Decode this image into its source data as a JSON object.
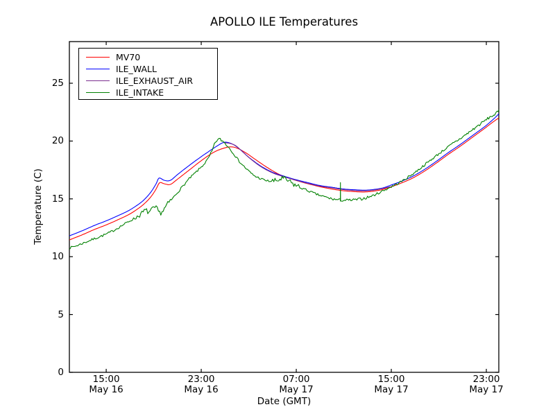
{
  "figure": {
    "background": "#ffffff",
    "axis_color": "#000000"
  },
  "chart_data": {
    "type": "line",
    "title": "APOLLO ILE Temperatures",
    "xlabel": "Date (GMT)",
    "ylabel": "Temperature (C)",
    "x_unit": "hours since May 16 00:00 GMT",
    "xlim": [
      11.9,
      48.05
    ],
    "ylim": [
      0,
      28.6
    ],
    "yticks": [
      0,
      5,
      10,
      15,
      20,
      25
    ],
    "xticks": [
      {
        "t": 15,
        "time": "15:00",
        "date": "May 16"
      },
      {
        "t": 23,
        "time": "23:00",
        "date": "May 16"
      },
      {
        "t": 31,
        "time": "07:00",
        "date": "May 17"
      },
      {
        "t": 39,
        "time": "15:00",
        "date": "May 17"
      },
      {
        "t": 47,
        "time": "23:00",
        "date": "May 17"
      }
    ],
    "grid": false,
    "legend_position": "upper left",
    "series": [
      {
        "name": "MV70",
        "color": "#ff0000",
        "points": [
          [
            11.9,
            11.45
          ],
          [
            13,
            11.9
          ],
          [
            14,
            12.35
          ],
          [
            15,
            12.75
          ],
          [
            16,
            13.2
          ],
          [
            17,
            13.7
          ],
          [
            18,
            14.4
          ],
          [
            18.7,
            15.1
          ],
          [
            19.2,
            15.85
          ],
          [
            19.5,
            16.4
          ],
          [
            19.9,
            16.3
          ],
          [
            20.4,
            16.25
          ],
          [
            21,
            16.7
          ],
          [
            22,
            17.5
          ],
          [
            23,
            18.3
          ],
          [
            24,
            19.0
          ],
          [
            24.8,
            19.35
          ],
          [
            25.5,
            19.5
          ],
          [
            26.1,
            19.35
          ],
          [
            26.8,
            18.95
          ],
          [
            27.5,
            18.45
          ],
          [
            28.5,
            17.75
          ],
          [
            29.5,
            17.15
          ],
          [
            30.5,
            16.75
          ],
          [
            31.3,
            16.5
          ],
          [
            32,
            16.3
          ],
          [
            33,
            16.05
          ],
          [
            34,
            15.85
          ],
          [
            35,
            15.7
          ],
          [
            36,
            15.62
          ],
          [
            36.8,
            15.6
          ],
          [
            37.6,
            15.68
          ],
          [
            38.3,
            15.82
          ],
          [
            39,
            16.05
          ],
          [
            39.8,
            16.35
          ],
          [
            40.8,
            16.8
          ],
          [
            41.8,
            17.4
          ],
          [
            42.8,
            18.1
          ],
          [
            43.8,
            18.85
          ],
          [
            44.8,
            19.55
          ],
          [
            45.8,
            20.3
          ],
          [
            46.8,
            21.05
          ],
          [
            47.5,
            21.6
          ],
          [
            48.05,
            22.0
          ]
        ]
      },
      {
        "name": "ILE_WALL",
        "color": "#0000ff",
        "points": [
          [
            11.9,
            11.8
          ],
          [
            13,
            12.25
          ],
          [
            14,
            12.7
          ],
          [
            15,
            13.1
          ],
          [
            16,
            13.55
          ],
          [
            17,
            14.05
          ],
          [
            18,
            14.75
          ],
          [
            18.7,
            15.5
          ],
          [
            19.2,
            16.3
          ],
          [
            19.45,
            16.8
          ],
          [
            19.9,
            16.6
          ],
          [
            20.4,
            16.6
          ],
          [
            21,
            17.1
          ],
          [
            22,
            17.9
          ],
          [
            23,
            18.65
          ],
          [
            24,
            19.35
          ],
          [
            24.7,
            19.8
          ],
          [
            25.1,
            19.9
          ],
          [
            25.7,
            19.7
          ],
          [
            26.3,
            19.25
          ],
          [
            27,
            18.6
          ],
          [
            28,
            17.85
          ],
          [
            29,
            17.3
          ],
          [
            30,
            16.95
          ],
          [
            31,
            16.65
          ],
          [
            32,
            16.4
          ],
          [
            33,
            16.15
          ],
          [
            34,
            16.0
          ],
          [
            35,
            15.85
          ],
          [
            36,
            15.78
          ],
          [
            36.8,
            15.75
          ],
          [
            37.6,
            15.82
          ],
          [
            38.3,
            15.95
          ],
          [
            39,
            16.2
          ],
          [
            39.8,
            16.5
          ],
          [
            40.8,
            16.95
          ],
          [
            41.8,
            17.55
          ],
          [
            42.8,
            18.25
          ],
          [
            43.8,
            19.0
          ],
          [
            44.8,
            19.7
          ],
          [
            45.8,
            20.45
          ],
          [
            46.8,
            21.2
          ],
          [
            47.5,
            21.8
          ],
          [
            48.05,
            22.35
          ]
        ]
      },
      {
        "name": "ILE_EXHAUST_AIR",
        "color": "#7b2d8e",
        "points": [
          [
            24.9,
            19.85
          ],
          [
            25.4,
            19.8
          ],
          [
            25.9,
            19.6
          ],
          [
            26.4,
            19.15
          ],
          [
            27.1,
            18.5
          ],
          [
            28,
            17.8
          ],
          [
            29,
            17.25
          ],
          [
            30,
            16.9
          ],
          [
            31,
            16.6
          ],
          [
            32,
            16.33
          ],
          [
            33,
            16.1
          ],
          [
            34,
            15.95
          ],
          [
            35,
            15.8
          ],
          [
            36,
            15.72
          ],
          [
            36.8,
            15.7
          ],
          [
            37.6,
            15.77
          ],
          [
            38.3,
            15.9
          ],
          [
            38.9,
            16.05
          ]
        ]
      },
      {
        "name": "ILE_INTAKE",
        "color": "#008000",
        "points": [
          [
            11.9,
            10.75
          ],
          [
            12.5,
            10.95
          ],
          [
            13,
            11.15
          ],
          [
            13.5,
            11.35
          ],
          [
            14,
            11.55
          ],
          [
            14.5,
            11.75
          ],
          [
            15,
            11.95
          ],
          [
            15.5,
            12.2
          ],
          [
            16,
            12.5
          ],
          [
            16.5,
            12.8
          ],
          [
            17,
            13.1
          ],
          [
            17.5,
            13.4
          ],
          [
            18,
            13.75
          ],
          [
            18.3,
            14.0
          ],
          [
            18.6,
            13.85
          ],
          [
            18.9,
            14.1
          ],
          [
            19.2,
            14.2
          ],
          [
            19.5,
            13.8
          ],
          [
            19.8,
            14.0
          ],
          [
            20.1,
            14.45
          ],
          [
            20.6,
            15.05
          ],
          [
            21,
            15.55
          ],
          [
            21.5,
            16.15
          ],
          [
            22,
            16.75
          ],
          [
            22.5,
            17.25
          ],
          [
            23,
            17.75
          ],
          [
            23.5,
            18.35
          ],
          [
            23.9,
            19.1
          ],
          [
            24.2,
            19.9
          ],
          [
            24.5,
            20.15
          ],
          [
            24.8,
            20.0
          ],
          [
            25.2,
            19.6
          ],
          [
            25.7,
            18.95
          ],
          [
            26.2,
            18.25
          ],
          [
            26.8,
            17.6
          ],
          [
            27.4,
            17.05
          ],
          [
            28,
            16.75
          ],
          [
            28.6,
            16.55
          ],
          [
            29.3,
            16.55
          ],
          [
            29.8,
            16.75
          ],
          [
            30.2,
            16.6
          ],
          [
            30.7,
            16.3
          ],
          [
            31.3,
            16.0
          ],
          [
            32,
            15.7
          ],
          [
            32.7,
            15.4
          ],
          [
            33.3,
            15.2
          ],
          [
            34,
            15.0
          ],
          [
            34.7,
            14.9
          ],
          [
            35.5,
            14.88
          ],
          [
            36.2,
            14.95
          ],
          [
            36.9,
            15.1
          ],
          [
            37.6,
            15.35
          ],
          [
            38.2,
            15.65
          ],
          [
            38.8,
            15.95
          ],
          [
            39.4,
            16.25
          ],
          [
            40,
            16.6
          ],
          [
            41,
            17.3
          ],
          [
            42,
            18.1
          ],
          [
            43,
            18.9
          ],
          [
            44,
            19.65
          ],
          [
            45,
            20.35
          ],
          [
            45.8,
            20.95
          ],
          [
            46.6,
            21.55
          ],
          [
            47.2,
            22.0
          ],
          [
            47.7,
            22.3
          ],
          [
            48.05,
            22.6
          ]
        ],
        "noise": {
          "seed": 7,
          "default_amp": 0.1,
          "regions": [
            [
              17.4,
              20.4,
              0.22
            ],
            [
              23.8,
              25.2,
              0.14
            ],
            [
              28.8,
              31.3,
              0.26
            ],
            [
              33.4,
              37.2,
              0.12
            ],
            [
              44.0,
              48.05,
              0.12
            ]
          ],
          "spikes": [
            [
              34.72,
              1.6
            ]
          ]
        }
      }
    ]
  }
}
